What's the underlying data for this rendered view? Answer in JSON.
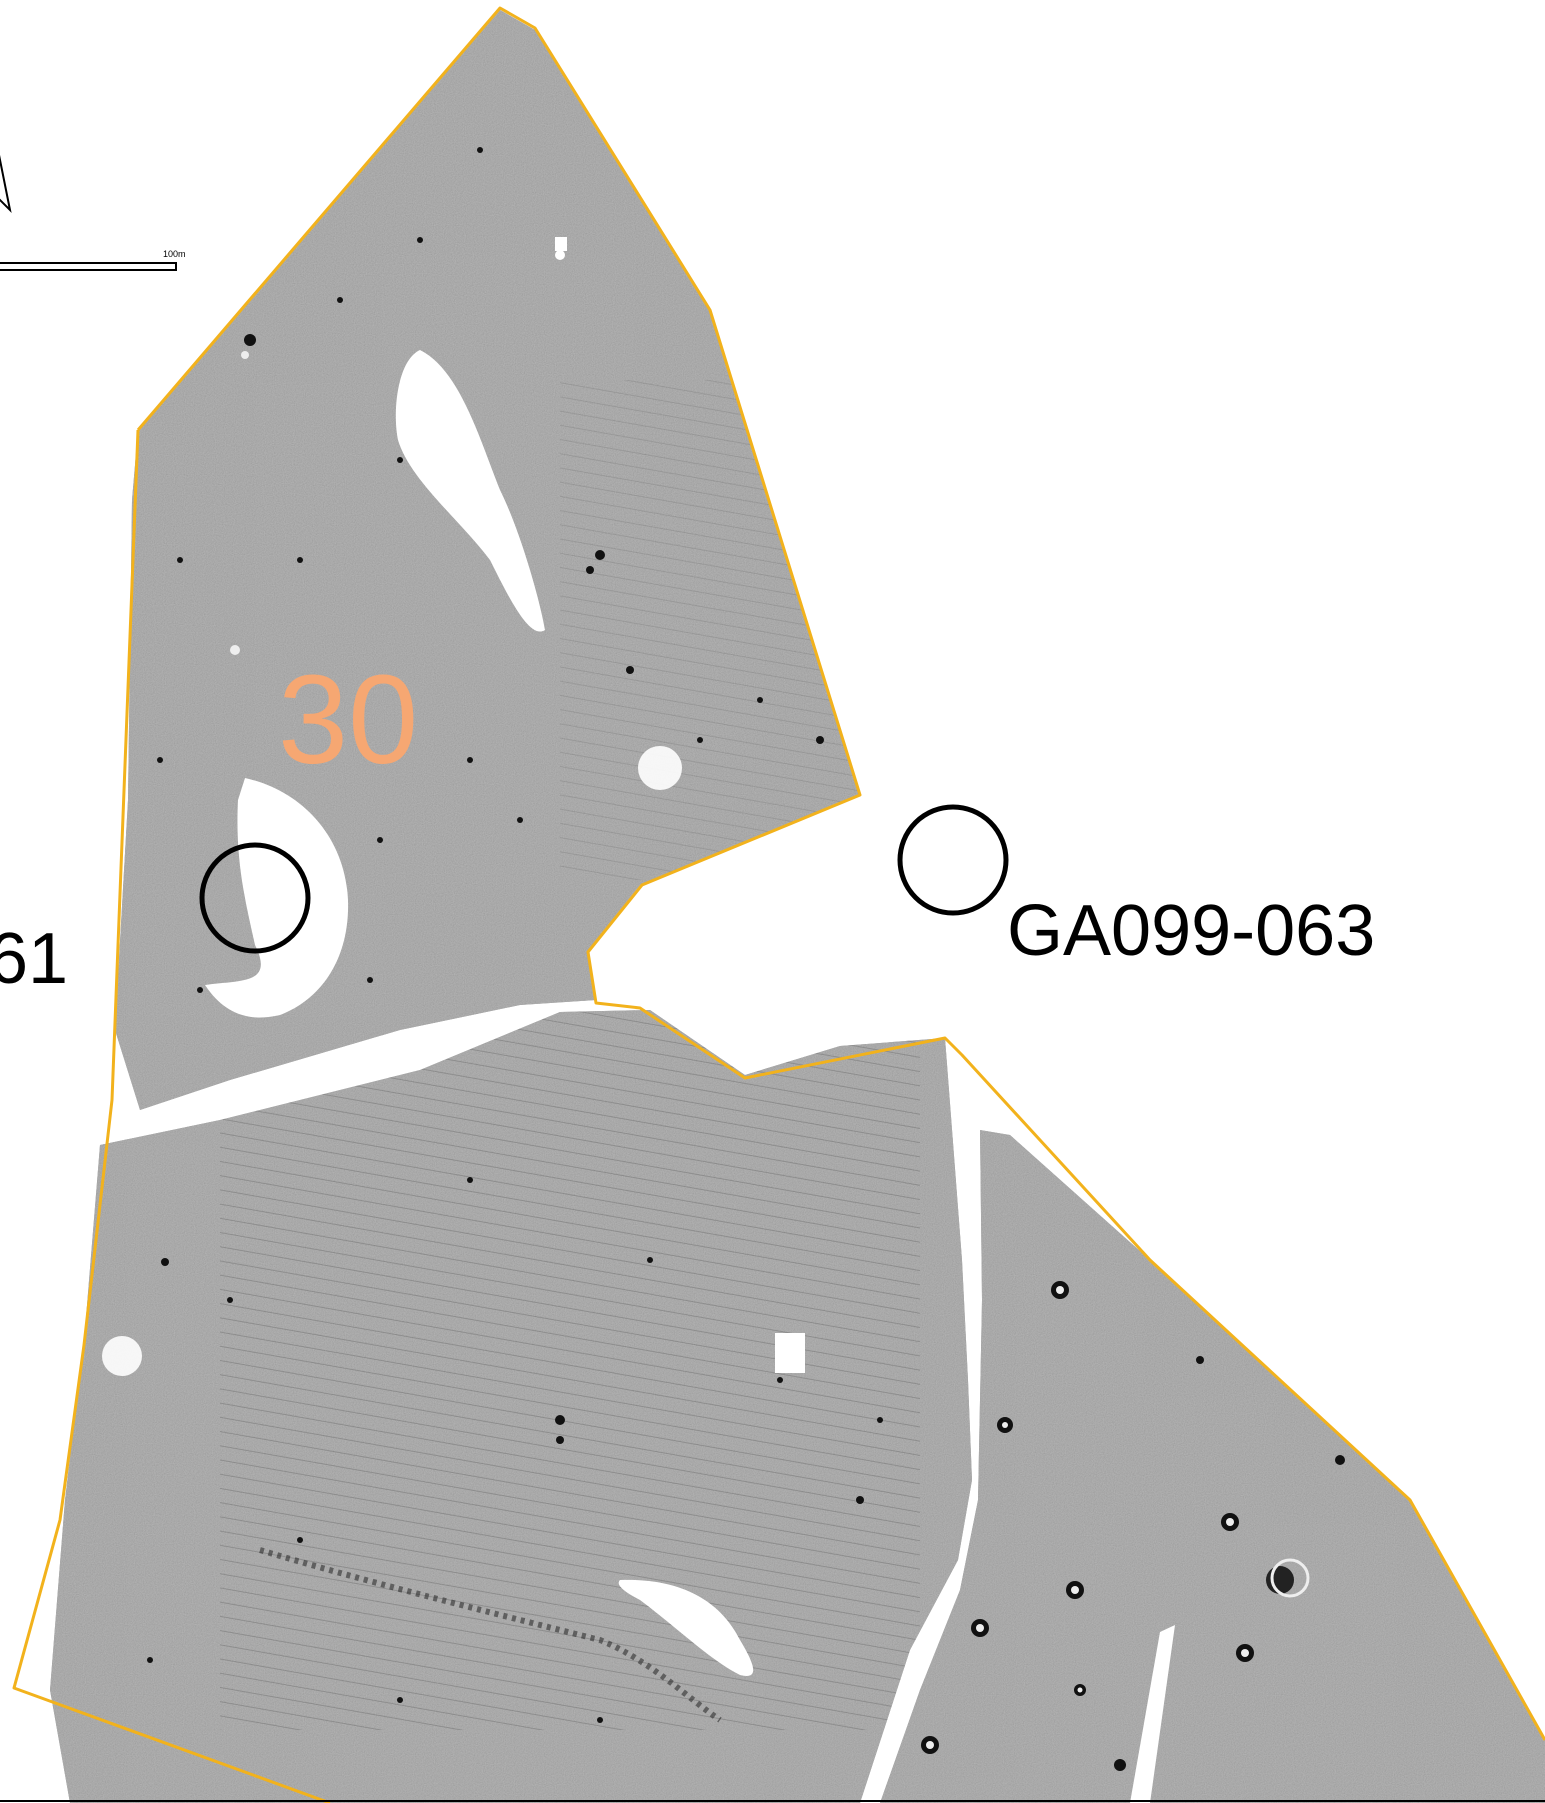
{
  "map": {
    "field_number": "30",
    "site_labels": {
      "right": "GA099-063",
      "left_partial": "61"
    },
    "scale_bar": {
      "label": "100m"
    },
    "north_arrow": {
      "icon": "north-arrow-icon"
    },
    "colors": {
      "survey_boundary": "#f2b21c",
      "field_number": "#f6a772",
      "survey_fill": "#7e7e7e",
      "site_circle": "#000000"
    }
  }
}
